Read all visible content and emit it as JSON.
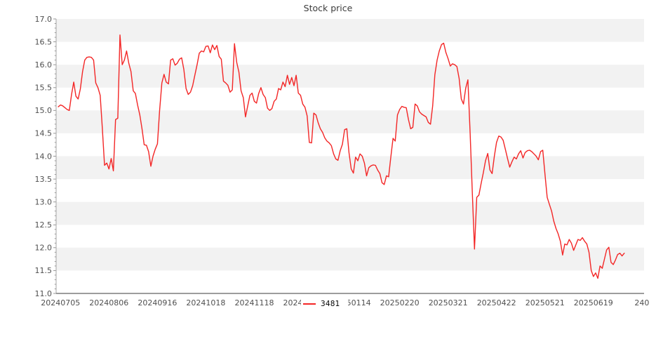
{
  "chart_data": {
    "type": "line",
    "title": "Stock price",
    "legend": {
      "label": "3481",
      "position": "lower-center-overlapping-x-axis"
    },
    "ylim": [
      11.0,
      17.0
    ],
    "y_tick_step": 0.5,
    "y_minor_tick_step": 0.1,
    "y_tick_labels": [
      "17.0",
      "16.5",
      "16.0",
      "15.5",
      "15.0",
      "14.5",
      "14.0",
      "13.5",
      "13.0",
      "12.5",
      "12.0",
      "11.5",
      "11.0"
    ],
    "grid": "horizontal-gray-bands",
    "band_color": "#f2f2f2",
    "shaded_bands": [
      [
        16.5,
        17.0
      ],
      [
        15.5,
        16.0
      ],
      [
        14.5,
        15.0
      ],
      [
        13.5,
        14.0
      ],
      [
        12.5,
        13.0
      ],
      [
        11.5,
        12.0
      ]
    ],
    "x_axis": {
      "tick_days": [
        1,
        23,
        45,
        67,
        89,
        111,
        133,
        155,
        177,
        199,
        221,
        243,
        265
      ],
      "tick_labels": [
        "20240705",
        "20240806",
        "20240916",
        "20241018",
        "20241118",
        "20241218",
        "20250114",
        "20250220",
        "20250321",
        "20250422",
        "20250521",
        "20250619",
        "240"
      ],
      "note_visible": "labels 20241218 and 20250114 are partially covered by the legend; last label clipped to 240",
      "domain_days": [
        -1,
        266
      ]
    },
    "series": [
      {
        "name": "3481",
        "color": "#f32626",
        "start_day": 0,
        "values": [
          15.08,
          15.12,
          15.1,
          15.06,
          15.02,
          15.0,
          15.35,
          15.62,
          15.31,
          15.25,
          15.47,
          15.85,
          16.1,
          16.16,
          16.17,
          16.16,
          16.1,
          15.6,
          15.5,
          15.33,
          14.6,
          13.8,
          13.85,
          13.72,
          13.95,
          13.68,
          14.8,
          14.83,
          16.65,
          16.0,
          16.1,
          16.3,
          16.03,
          15.85,
          15.43,
          15.37,
          15.12,
          14.9,
          14.6,
          14.25,
          14.24,
          14.1,
          13.78,
          14.0,
          14.15,
          14.27,
          15.0,
          15.6,
          15.79,
          15.62,
          15.58,
          16.1,
          16.13,
          15.99,
          16.03,
          16.12,
          16.15,
          15.9,
          15.48,
          15.35,
          15.4,
          15.54,
          15.77,
          16.0,
          16.25,
          16.3,
          16.28,
          16.4,
          16.41,
          16.26,
          16.43,
          16.33,
          16.42,
          16.18,
          16.12,
          15.64,
          15.6,
          15.55,
          15.4,
          15.45,
          16.46,
          16.05,
          15.84,
          15.43,
          15.28,
          14.86,
          15.1,
          15.33,
          15.38,
          15.2,
          15.16,
          15.37,
          15.5,
          15.35,
          15.28,
          15.05,
          15.0,
          15.04,
          15.2,
          15.25,
          15.48,
          15.45,
          15.62,
          15.52,
          15.77,
          15.57,
          15.72,
          15.54,
          15.77,
          15.38,
          15.33,
          15.14,
          15.07,
          14.88,
          14.3,
          14.29,
          14.94,
          14.9,
          14.73,
          14.6,
          14.52,
          14.4,
          14.33,
          14.29,
          14.23,
          14.05,
          13.94,
          13.91,
          14.12,
          14.26,
          14.58,
          14.6,
          14.08,
          13.72,
          13.63,
          13.98,
          13.9,
          14.05,
          14.0,
          13.85,
          13.57,
          13.75,
          13.79,
          13.81,
          13.8,
          13.7,
          13.62,
          13.42,
          13.38,
          13.57,
          13.55,
          13.99,
          14.39,
          14.33,
          14.9,
          15.02,
          15.09,
          15.07,
          15.06,
          14.8,
          14.6,
          14.63,
          15.14,
          15.1,
          14.97,
          14.92,
          14.89,
          14.86,
          14.74,
          14.7,
          15.1,
          15.78,
          16.1,
          16.3,
          16.44,
          16.47,
          16.27,
          16.13,
          15.97,
          16.02,
          16.0,
          15.96,
          15.7,
          15.25,
          15.14,
          15.49,
          15.67,
          14.5,
          13.2,
          11.97,
          13.1,
          13.15,
          13.4,
          13.64,
          13.9,
          14.06,
          13.7,
          13.62,
          14.0,
          14.3,
          14.44,
          14.42,
          14.35,
          14.15,
          13.95,
          13.76,
          13.88,
          13.98,
          13.94,
          14.05,
          14.12,
          13.96,
          14.08,
          14.12,
          14.13,
          14.1,
          14.05,
          14.0,
          13.92,
          14.1,
          14.13,
          13.6,
          13.1,
          12.95,
          12.8,
          12.58,
          12.42,
          12.3,
          12.14,
          11.84,
          12.08,
          12.06,
          12.18,
          12.1,
          11.94,
          12.06,
          12.18,
          12.16,
          12.22,
          12.14,
          12.08,
          11.9,
          11.5,
          11.37,
          11.45,
          11.33,
          11.6,
          11.55,
          11.75,
          11.95,
          12.01,
          11.68,
          11.63,
          11.73,
          11.85,
          11.88,
          11.82,
          11.88
        ]
      }
    ],
    "colors": {
      "line": "#f32626",
      "band": "#f2f2f2",
      "spine_left": "#a6a6a6",
      "spine_bottom": "#7d7d7d",
      "tick_mark": "#8a8a8a",
      "tick_label": "#4f4f4f",
      "title": "#3c3c3c"
    }
  }
}
